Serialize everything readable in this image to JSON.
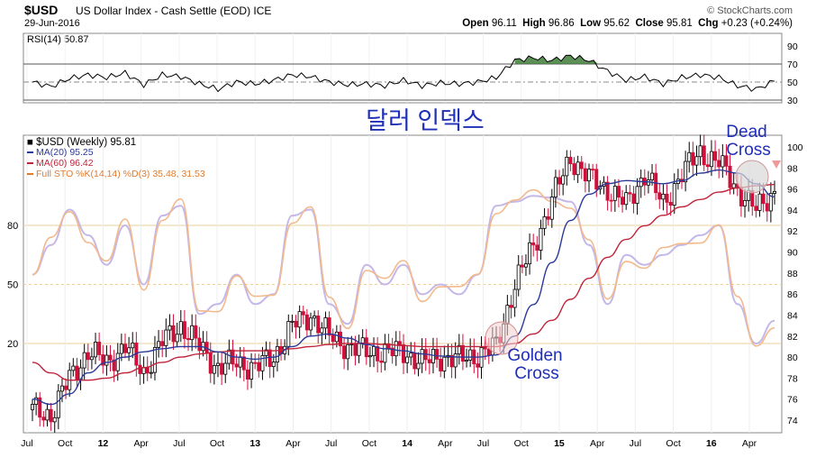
{
  "header": {
    "symbol": "$USD",
    "name": "US Dollar Index - Cash Settle (EOD)",
    "exchange": "ICE",
    "date": "29-Jun-2016",
    "watermark": "© StockCharts.com",
    "open_label": "Open",
    "open": "96.11",
    "high_label": "High",
    "high": "96.86",
    "low_label": "Low",
    "low": "95.62",
    "close_label": "Close",
    "close": "95.81",
    "chg_label": "Chg",
    "chg": "+0.23 (+0.24%)"
  },
  "rsi_panel": {
    "label": "RSI(14) 50.87",
    "ticks": [
      90,
      70,
      50,
      30
    ],
    "overbought": 70,
    "oversold": 30
  },
  "annotations": {
    "korean_title": "달러 인덱스",
    "dead_cross": [
      "Dead",
      "Cross"
    ],
    "golden_cross": [
      "Golden",
      "Cross"
    ]
  },
  "price_panel": {
    "legend": [
      {
        "text": "$USD (Weekly) 95.81",
        "color": "#000000"
      },
      {
        "text": "MA(20) 95.25",
        "color": "#2b3a9a"
      },
      {
        "text": "MA(60) 96.42",
        "color": "#c0243a"
      },
      {
        "text": "Full STO %K(14,14) %D(3) 35.48, 31.53",
        "color": "#e07b2e",
        "suffix_color": "#6b3fa0"
      }
    ],
    "left_ticks": [
      80,
      50,
      20
    ],
    "right_ticks": [
      100,
      98,
      96,
      94,
      92,
      90,
      88,
      86,
      84,
      82,
      80,
      78,
      76,
      74
    ],
    "x_ticks": [
      "Jul",
      "Oct",
      "12",
      "Apr",
      "Jul",
      "Oct",
      "13",
      "Apr",
      "Jul",
      "Oct",
      "14",
      "Apr",
      "Jul",
      "Oct",
      "15",
      "Apr",
      "Jul",
      "Oct",
      "16",
      "Apr"
    ]
  },
  "chart_data": {
    "type": "line",
    "title": "US Dollar Index - Cash Settle (EOD)",
    "x_ticks": [
      "Jul",
      "Oct",
      "12",
      "Apr",
      "Jul",
      "Oct",
      "13",
      "Apr",
      "Jul",
      "Oct",
      "14",
      "Apr",
      "Jul",
      "Oct",
      "15",
      "Apr",
      "Jul",
      "Oct",
      "16",
      "Apr"
    ],
    "ylim": [
      73,
      101
    ],
    "series": [
      {
        "name": "$USD (Weekly)",
        "values": [
          75.0,
          74.5,
          78.0,
          80.5,
          79.5,
          81.0,
          78.5,
          81.5,
          83.0,
          81.0,
          79.0,
          79.5,
          79.0,
          80.0,
          83.0,
          84.0,
          82.0,
          81.0,
          80.5,
          80.5,
          80.5,
          79.5,
          80.0,
          79.8,
          80.2,
          81.0,
          87.0,
          90.5,
          95.0,
          99.0,
          97.0,
          96.0,
          94.5,
          97.5,
          94.5,
          97.5,
          99.5,
          98.5,
          96.0,
          94.0,
          95.8
        ]
      },
      {
        "name": "MA(20)",
        "values": [
          76.0,
          75.5,
          76.5,
          78.5,
          79.5,
          80.0,
          80.5,
          80.8,
          81.0,
          81.0,
          80.5,
          80.0,
          79.8,
          80.0,
          81.0,
          82.0,
          82.2,
          81.8,
          81.2,
          80.8,
          80.6,
          80.3,
          80.1,
          80.0,
          80.0,
          80.2,
          82.0,
          85.0,
          89.0,
          93.0,
          95.5,
          96.5,
          96.8,
          96.7,
          96.5,
          96.8,
          97.5,
          97.8,
          97.5,
          96.5,
          95.25
        ]
      },
      {
        "name": "MA(60)",
        "values": [
          79.5,
          78.5,
          77.8,
          77.8,
          78.0,
          78.5,
          79.0,
          79.5,
          80.0,
          80.3,
          80.5,
          80.6,
          80.6,
          80.6,
          80.8,
          81.0,
          81.2,
          81.3,
          81.3,
          81.2,
          81.1,
          81.0,
          81.0,
          81.0,
          81.0,
          81.0,
          81.3,
          82.2,
          83.5,
          85.5,
          87.5,
          89.5,
          91.2,
          92.5,
          93.5,
          94.3,
          95.0,
          95.7,
          96.1,
          96.3,
          96.42
        ]
      }
    ],
    "rsi": {
      "name": "RSI(14)",
      "ylim": [
        20,
        100
      ],
      "values": [
        50,
        45,
        54,
        58,
        55,
        60,
        47,
        58,
        56,
        48,
        42,
        50,
        48,
        52,
        58,
        56,
        50,
        47,
        48,
        46,
        52,
        46,
        49,
        48,
        50,
        55,
        74,
        77,
        74,
        79,
        74,
        62,
        52,
        56,
        48,
        55,
        58,
        55,
        46,
        42,
        50.87
      ]
    },
    "stochastic": {
      "name": "Full STO %K(14,14) %D(3)",
      "ylim": [
        0,
        100
      ],
      "values": [
        55,
        70,
        88,
        75,
        60,
        80,
        50,
        85,
        90,
        35,
        40,
        55,
        40,
        45,
        85,
        88,
        40,
        30,
        60,
        50,
        60,
        45,
        50,
        45,
        55,
        90,
        92,
        95,
        94,
        92,
        70,
        40,
        65,
        60,
        65,
        70,
        75,
        80,
        40,
        20,
        31.53
      ]
    }
  }
}
